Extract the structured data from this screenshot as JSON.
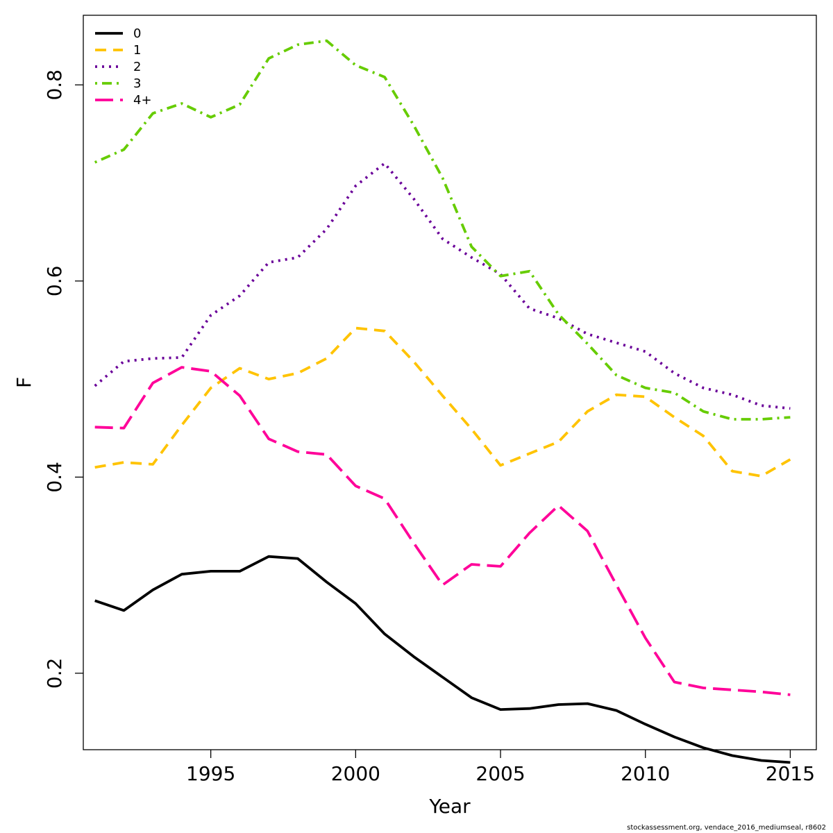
{
  "chart_data": {
    "type": "line",
    "title": "",
    "xlabel": "Year",
    "ylabel": "F",
    "xlim": [
      1990.6,
      2015.9
    ],
    "ylim": [
      0.122,
      0.871
    ],
    "xticks": [
      1995,
      2000,
      2005,
      2010,
      2015
    ],
    "xtick_labels": [
      "1995",
      "2000",
      "2005",
      "2010",
      "2015"
    ],
    "yticks": [
      0.2,
      0.4,
      0.6,
      0.8
    ],
    "ytick_labels": [
      "0.2",
      "0.4",
      "0.6",
      "0.8"
    ],
    "legend_position": "top-left",
    "x": [
      1991,
      1992,
      1993,
      1994,
      1995,
      1996,
      1997,
      1998,
      1999,
      2000,
      2001,
      2002,
      2003,
      2004,
      2005,
      2006,
      2007,
      2008,
      2009,
      2010,
      2011,
      2012,
      2013,
      2014,
      2015
    ],
    "series": [
      {
        "name": "0",
        "color": "#000000",
        "style": "solid",
        "values": [
          0.274,
          0.264,
          0.285,
          0.301,
          0.304,
          0.304,
          0.319,
          0.317,
          0.293,
          0.271,
          0.24,
          0.217,
          0.196,
          0.175,
          0.163,
          0.164,
          0.168,
          0.169,
          0.162,
          0.148,
          0.135,
          0.124,
          0.116,
          0.111,
          0.109
        ]
      },
      {
        "name": "1",
        "color": "#ffc300",
        "style": "dashed",
        "values": [
          0.41,
          0.415,
          0.413,
          0.453,
          0.491,
          0.511,
          0.5,
          0.506,
          0.521,
          0.552,
          0.549,
          0.518,
          0.483,
          0.449,
          0.412,
          0.424,
          0.436,
          0.467,
          0.484,
          0.482,
          0.461,
          0.442,
          0.406,
          0.401,
          0.418
        ]
      },
      {
        "name": "2",
        "color": "#6a0099",
        "style": "dotted",
        "values": [
          0.493,
          0.518,
          0.521,
          0.522,
          0.565,
          0.585,
          0.619,
          0.624,
          0.653,
          0.697,
          0.72,
          0.684,
          0.643,
          0.624,
          0.607,
          0.572,
          0.562,
          0.546,
          0.537,
          0.528,
          0.506,
          0.491,
          0.484,
          0.473,
          0.47
        ]
      },
      {
        "name": "3",
        "color": "#66cc00",
        "style": "dotdash",
        "values": [
          0.721,
          0.734,
          0.771,
          0.781,
          0.767,
          0.78,
          0.827,
          0.841,
          0.845,
          0.82,
          0.808,
          0.759,
          0.705,
          0.635,
          0.605,
          0.61,
          0.566,
          0.536,
          0.504,
          0.491,
          0.486,
          0.467,
          0.459,
          0.459,
          0.461
        ]
      },
      {
        "name": "4+",
        "color": "#ff0099",
        "style": "longdash",
        "values": [
          0.451,
          0.45,
          0.496,
          0.512,
          0.508,
          0.483,
          0.439,
          0.426,
          0.423,
          0.391,
          0.378,
          0.333,
          0.29,
          0.311,
          0.309,
          0.343,
          0.371,
          0.345,
          0.29,
          0.236,
          0.191,
          0.185,
          0.183,
          0.181,
          0.178
        ]
      }
    ]
  },
  "credit": "stockassessment.org, vendace_2016_mediumseal, r8602"
}
